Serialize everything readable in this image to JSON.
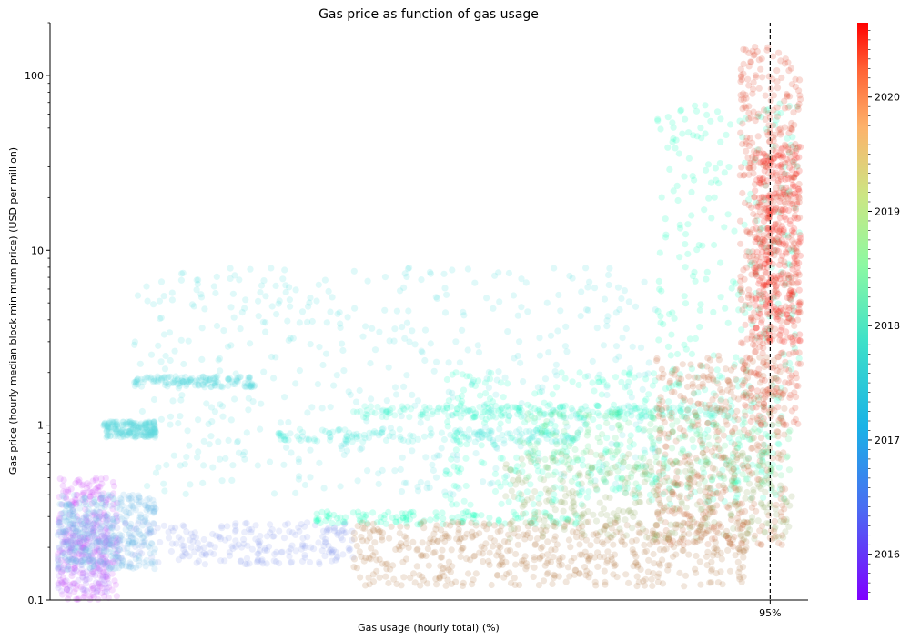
{
  "chart_data": {
    "type": "scatter",
    "title": "Gas price as function of gas usage",
    "xlabel": "Gas usage (hourly total) (%)",
    "ylabel": "Gas price (hourly median block minimum price) (USD per million)",
    "y_scale": "log",
    "ylim": [
      0.1,
      200
    ],
    "xlim": [
      0,
      100
    ],
    "y_ticks": [
      {
        "value": 0.1,
        "label": "0.1"
      },
      {
        "value": 1,
        "label": "1"
      },
      {
        "value": 10,
        "label": "10"
      },
      {
        "value": 100,
        "label": "100"
      }
    ],
    "x_ticks": [
      {
        "value": 95,
        "label": "95%"
      }
    ],
    "reference_line": {
      "x": 95,
      "style": "dashed",
      "color": "#000000"
    },
    "grid": false,
    "point_alpha": 0.18,
    "colorbar": {
      "colormap": "rainbow",
      "range": [
        2015.6,
        2020.65
      ],
      "ticks": [
        {
          "value": 2016,
          "label": "2016"
        },
        {
          "value": 2017,
          "label": "2017"
        },
        {
          "value": 2018,
          "label": "2018"
        },
        {
          "value": 2019,
          "label": "2019"
        },
        {
          "value": 2020,
          "label": "2020"
        }
      ]
    },
    "clusters": [
      {
        "year": 2016.1,
        "x_range": [
          1,
          9
        ],
        "y_range": [
          0.1,
          0.5
        ],
        "n": 260
      },
      {
        "year": 2016.4,
        "x_range": [
          1,
          8
        ],
        "y_range": [
          0.11,
          0.3
        ],
        "n": 160
      },
      {
        "year": 2016.7,
        "x_range": [
          2,
          40
        ],
        "y_range": [
          0.16,
          0.28
        ],
        "n": 300
      },
      {
        "year": 2016.95,
        "x_range": [
          1,
          14
        ],
        "y_range": [
          0.15,
          0.4
        ],
        "n": 380
      },
      {
        "year": 2017.2,
        "x_range": [
          7,
          14
        ],
        "y_range": [
          0.85,
          1.05
        ],
        "n": 200
      },
      {
        "year": 2017.25,
        "x_range": [
          11,
          27
        ],
        "y_range": [
          1.65,
          1.9
        ],
        "n": 140
      },
      {
        "year": 2017.3,
        "x_range": [
          11,
          80
        ],
        "y_range": [
          0.4,
          8
        ],
        "n": 520
      },
      {
        "year": 2017.45,
        "x_range": [
          30,
          70
        ],
        "y_range": [
          0.8,
          0.95
        ],
        "n": 160
      },
      {
        "year": 2017.6,
        "x_range": [
          40,
          90
        ],
        "y_range": [
          1.1,
          1.3
        ],
        "n": 200
      },
      {
        "year": 2017.9,
        "x_range": [
          52,
          97
        ],
        "y_range": [
          0.35,
          2
        ],
        "n": 420
      },
      {
        "year": 2018.05,
        "x_range": [
          35,
          70
        ],
        "y_range": [
          0.27,
          0.32
        ],
        "n": 120
      },
      {
        "year": 2018.1,
        "x_range": [
          80,
          99
        ],
        "y_range": [
          2,
          70
        ],
        "n": 220
      },
      {
        "year": 2018.9,
        "x_range": [
          62,
          98
        ],
        "y_range": [
          0.45,
          1.2
        ],
        "n": 240
      },
      {
        "year": 2019.5,
        "x_range": [
          60,
          98
        ],
        "y_range": [
          0.22,
          0.7
        ],
        "n": 340
      },
      {
        "year": 2019.9,
        "x_range": [
          40,
          92
        ],
        "y_range": [
          0.12,
          0.28
        ],
        "n": 520
      },
      {
        "year": 2020.05,
        "x_range": [
          80,
          97
        ],
        "y_range": [
          0.2,
          2.5
        ],
        "n": 420
      },
      {
        "year": 2020.3,
        "x_range": [
          91,
          99
        ],
        "y_range": [
          1,
          150
        ],
        "n": 500
      },
      {
        "year": 2020.55,
        "x_range": [
          93,
          99
        ],
        "y_range": [
          3,
          40
        ],
        "n": 300
      }
    ]
  }
}
